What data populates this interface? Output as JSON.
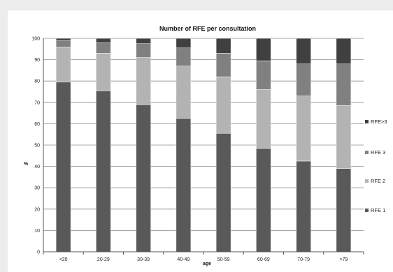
{
  "chart_data": {
    "type": "bar",
    "stacked": true,
    "title": "Number of RFE per consultation",
    "xlabel": "age",
    "ylabel": "%",
    "categories": [
      "<20",
      "20-29",
      "30-39",
      "40-49",
      "50-59",
      "60-69",
      "70-79",
      ">79"
    ],
    "ylim": [
      0,
      100
    ],
    "yticks": [
      0,
      10,
      20,
      30,
      40,
      50,
      60,
      70,
      80,
      90,
      100
    ],
    "grid": true,
    "legend_position": "right",
    "series": [
      {
        "name": "RFE 1",
        "color": "#595959",
        "values": [
          79.5,
          75.5,
          69,
          62.5,
          55.5,
          48.5,
          42.5,
          39
        ]
      },
      {
        "name": "RFE 2",
        "color": "#b3b3b3",
        "values": [
          16.5,
          17.5,
          22,
          24.5,
          26.5,
          27.5,
          30.5,
          29.5
        ]
      },
      {
        "name": "RFE 3",
        "color": "#808080",
        "values": [
          3,
          5,
          6.5,
          8.5,
          11,
          13.5,
          15,
          19.5
        ]
      },
      {
        "name": "RFE>3",
        "color": "#404040",
        "values": [
          1,
          2,
          2.5,
          4.5,
          7,
          10.5,
          12,
          12
        ]
      }
    ]
  }
}
